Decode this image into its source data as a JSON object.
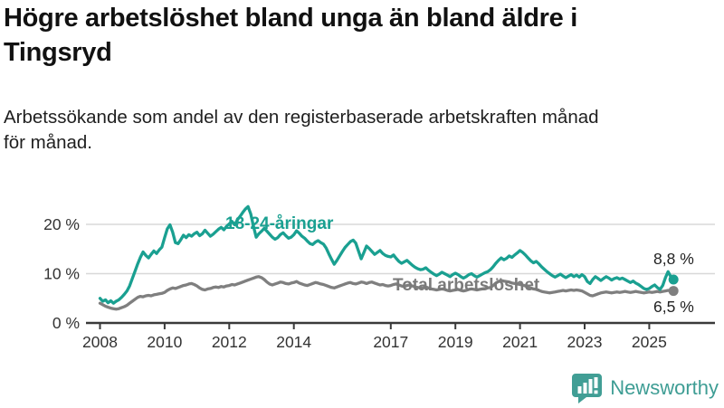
{
  "header": {
    "title": "Högre arbetslöshet bland unga än bland äldre i\nTingsryd",
    "subtitle": "Arbetssökande som andel av den registerbaserade arbetskraften månad\nför månad."
  },
  "chart_data": {
    "type": "line",
    "unit": "%",
    "grid": "horizontal",
    "legend_position": "inline-labels",
    "ylim": [
      0,
      24
    ],
    "y_ticks": [
      {
        "value": 0,
        "label": "0 %"
      },
      {
        "value": 10,
        "label": "10 %"
      },
      {
        "value": 20,
        "label": "20 %"
      }
    ],
    "x_ticks": [
      {
        "year": 2008,
        "label": "2008"
      },
      {
        "year": 2010,
        "label": "2010"
      },
      {
        "year": 2012,
        "label": "2012"
      },
      {
        "year": 2014,
        "label": "2014"
      },
      {
        "year": 2017,
        "label": "2017"
      },
      {
        "year": 2019,
        "label": "2019"
      },
      {
        "year": 2021,
        "label": "2021"
      },
      {
        "year": 2023,
        "label": "2023"
      },
      {
        "year": 2025,
        "label": "2025"
      }
    ],
    "start": {
      "year": 2008,
      "month": 1
    },
    "frequency": "monthly",
    "series": [
      {
        "name": "18-24-åringar",
        "color": "#1aa091",
        "last_value_label": "8,8 %",
        "last_value": 8.8,
        "values": [
          5.0,
          4.4,
          4.7,
          4.1,
          4.5,
          4.0,
          4.4,
          4.7,
          5.2,
          5.8,
          6.5,
          7.5,
          9.0,
          10.5,
          12.0,
          13.3,
          14.4,
          13.7,
          13.2,
          13.9,
          14.6,
          14.1,
          14.8,
          15.4,
          17.3,
          19.1,
          19.9,
          18.4,
          16.3,
          16.1,
          16.9,
          17.8,
          17.3,
          17.9,
          17.6,
          18.1,
          18.4,
          17.7,
          18.1,
          18.8,
          18.2,
          17.6,
          18.0,
          18.5,
          19.0,
          19.4,
          18.9,
          19.6,
          20.1,
          20.6,
          19.9,
          20.9,
          21.6,
          22.4,
          23.1,
          23.6,
          22.1,
          19.6,
          17.4,
          18.1,
          18.6,
          19.2,
          18.6,
          18.0,
          17.4,
          17.0,
          17.3,
          17.9,
          18.3,
          17.7,
          17.2,
          17.4,
          17.9,
          18.7,
          18.2,
          17.6,
          17.2,
          16.6,
          16.1,
          15.9,
          16.4,
          16.7,
          16.3,
          16.0,
          15.2,
          14.0,
          12.9,
          11.9,
          12.7,
          13.6,
          14.5,
          15.3,
          15.9,
          16.5,
          16.8,
          16.2,
          14.6,
          13.0,
          14.3,
          15.6,
          15.1,
          14.5,
          13.9,
          14.3,
          14.7,
          14.1,
          13.7,
          13.5,
          13.4,
          13.8,
          13.1,
          12.5,
          12.1,
          12.4,
          12.7,
          12.2,
          11.7,
          11.3,
          11.0,
          10.8,
          10.9,
          11.2,
          10.7,
          10.3,
          9.9,
          9.6,
          9.9,
          10.3,
          10.0,
          9.7,
          9.4,
          9.8,
          10.1,
          9.8,
          9.4,
          9.1,
          9.4,
          9.8,
          10.0,
          9.6,
          9.3,
          9.6,
          9.9,
          10.2,
          10.4,
          10.8,
          11.4,
          12.1,
          12.7,
          13.2,
          12.8,
          13.1,
          13.6,
          13.3,
          13.8,
          14.2,
          14.7,
          14.3,
          13.8,
          13.2,
          12.6,
          12.2,
          12.5,
          12.0,
          11.4,
          10.9,
          10.4,
          10.0,
          9.6,
          9.3,
          9.6,
          9.9,
          9.5,
          9.2,
          9.5,
          9.8,
          9.4,
          9.7,
          9.3,
          9.8,
          9.4,
          8.4,
          8.0,
          8.8,
          9.4,
          9.0,
          8.6,
          9.0,
          9.4,
          9.1,
          8.7,
          9.0,
          9.2,
          8.9,
          9.1,
          8.8,
          8.5,
          8.2,
          8.5,
          8.1,
          7.8,
          7.4,
          7.0,
          6.8,
          7.0,
          7.4,
          7.7,
          7.2,
          6.8,
          7.6,
          9.2,
          10.4,
          9.4,
          8.8
        ]
      },
      {
        "name": "Total arbetslöshet",
        "color": "#7f7f7f",
        "last_value_label": "6,5 %",
        "last_value": 6.5,
        "values": [
          4.0,
          3.7,
          3.4,
          3.2,
          3.0,
          2.9,
          2.8,
          2.9,
          3.1,
          3.3,
          3.6,
          4.0,
          4.4,
          4.8,
          5.2,
          5.4,
          5.3,
          5.5,
          5.6,
          5.5,
          5.7,
          5.8,
          5.9,
          6.0,
          6.2,
          6.6,
          6.9,
          7.1,
          7.0,
          7.2,
          7.4,
          7.6,
          7.7,
          7.9,
          8.0,
          7.8,
          7.5,
          7.1,
          6.8,
          6.7,
          6.9,
          7.0,
          7.2,
          7.3,
          7.2,
          7.4,
          7.3,
          7.5,
          7.6,
          7.8,
          7.7,
          7.9,
          8.1,
          8.3,
          8.5,
          8.7,
          8.9,
          9.1,
          9.3,
          9.4,
          9.2,
          8.8,
          8.3,
          7.9,
          7.7,
          7.9,
          8.1,
          8.3,
          8.2,
          8.0,
          7.9,
          8.1,
          8.2,
          8.4,
          8.1,
          7.9,
          7.7,
          7.6,
          7.8,
          8.0,
          8.2,
          8.1,
          7.9,
          7.8,
          7.6,
          7.4,
          7.2,
          7.1,
          7.3,
          7.5,
          7.7,
          7.9,
          8.1,
          8.2,
          8.0,
          7.9,
          8.1,
          8.3,
          8.2,
          8.0,
          8.2,
          8.3,
          8.1,
          7.9,
          7.7,
          7.8,
          7.6,
          7.5,
          7.6,
          7.8,
          7.9,
          7.7,
          7.5,
          7.4,
          7.6,
          7.7,
          7.5,
          7.3,
          7.2,
          7.1,
          7.2,
          7.3,
          7.1,
          6.9,
          6.8,
          6.7,
          6.8,
          6.9,
          6.8,
          6.6,
          6.5,
          6.6,
          6.7,
          6.8,
          6.6,
          6.5,
          6.6,
          6.8,
          6.9,
          6.8,
          6.7,
          6.8,
          6.9,
          7.0,
          7.1,
          7.2,
          7.6,
          8.1,
          8.4,
          8.6,
          8.5,
          8.4,
          8.3,
          8.1,
          8.0,
          7.9,
          7.8,
          7.7,
          7.5,
          7.3,
          7.1,
          6.9,
          6.8,
          6.6,
          6.4,
          6.3,
          6.2,
          6.1,
          6.2,
          6.3,
          6.4,
          6.5,
          6.6,
          6.5,
          6.6,
          6.7,
          6.6,
          6.7,
          6.6,
          6.5,
          6.2,
          5.9,
          5.6,
          5.5,
          5.7,
          5.9,
          6.1,
          6.2,
          6.3,
          6.2,
          6.1,
          6.2,
          6.3,
          6.2,
          6.3,
          6.4,
          6.3,
          6.2,
          6.3,
          6.4,
          6.3,
          6.2,
          6.1,
          6.2,
          6.3,
          6.2,
          6.3,
          6.4,
          6.3,
          6.4,
          6.5,
          6.6,
          6.5,
          6.5
        ]
      }
    ]
  },
  "footer": {
    "brand": "Newsworthy",
    "brand_color": "#3e9d94"
  },
  "colors": {
    "youth_line": "#1aa091",
    "total_line": "#7f7f7f",
    "gridline": "#d8d8d8",
    "axis": "#3a3a3a",
    "tick_label": "#333333"
  }
}
